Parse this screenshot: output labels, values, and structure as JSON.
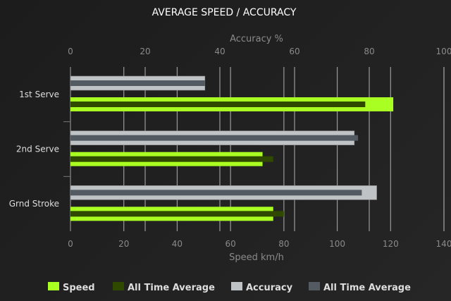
{
  "chart_data": {
    "type": "bar",
    "orientation": "horizontal",
    "title": "AVERAGE SPEED / ACCURACY",
    "categories": [
      "1st Serve",
      "2nd Serve",
      "Grnd Stroke"
    ],
    "top_axis": {
      "label": "Accuracy %",
      "range": [
        0,
        100
      ],
      "ticks": [
        0,
        20,
        40,
        60,
        80,
        100
      ]
    },
    "bottom_axis": {
      "label": "Speed km/h",
      "range": [
        0,
        140
      ],
      "ticks": [
        0,
        20,
        40,
        60,
        80,
        100,
        120,
        140
      ]
    },
    "grid": true,
    "legend_position": "bottom",
    "series": [
      {
        "name": "Speed",
        "axis": "bottom",
        "color": "#aaff22",
        "values": [
          121,
          72,
          76
        ]
      },
      {
        "name": "All Time Average",
        "axis": "bottom",
        "color": "#2f4a00",
        "values": [
          110.5,
          76,
          80
        ]
      },
      {
        "name": "Accuracy",
        "axis": "top",
        "color": "#bfc3c6",
        "values": [
          36,
          76,
          82
        ]
      },
      {
        "name": "All Time Average",
        "axis": "top",
        "color": "#535a61",
        "values": [
          36,
          77,
          78
        ]
      }
    ]
  }
}
